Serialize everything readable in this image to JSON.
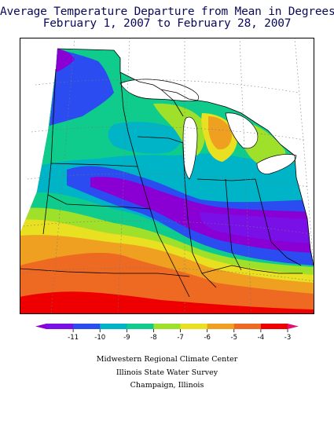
{
  "header": {
    "title_line1": "Average Temperature Departure from Mean in Degrees F",
    "title_line2": "February 1, 2007 to February 28, 2007"
  },
  "legend": {
    "tick_labels": [
      "-11",
      "-10",
      "-9",
      "-8",
      "-7",
      "-6",
      "-5",
      "-4",
      "-3"
    ],
    "colors": [
      "#8a00d4",
      "#7a10e8",
      "#2a4cf0",
      "#00b4c8",
      "#10cc8c",
      "#9ee02a",
      "#e8e020",
      "#f0a020",
      "#ee6a22",
      "#ee0000",
      "#e01070"
    ]
  },
  "map": {
    "region": "Midwest",
    "water_color": "#ffffff",
    "grid": true
  },
  "credits": {
    "line1": "Midwestern Regional Climate Center",
    "line2": "Illinois State Water Survey",
    "line3": "Champaign, Illinois"
  }
}
